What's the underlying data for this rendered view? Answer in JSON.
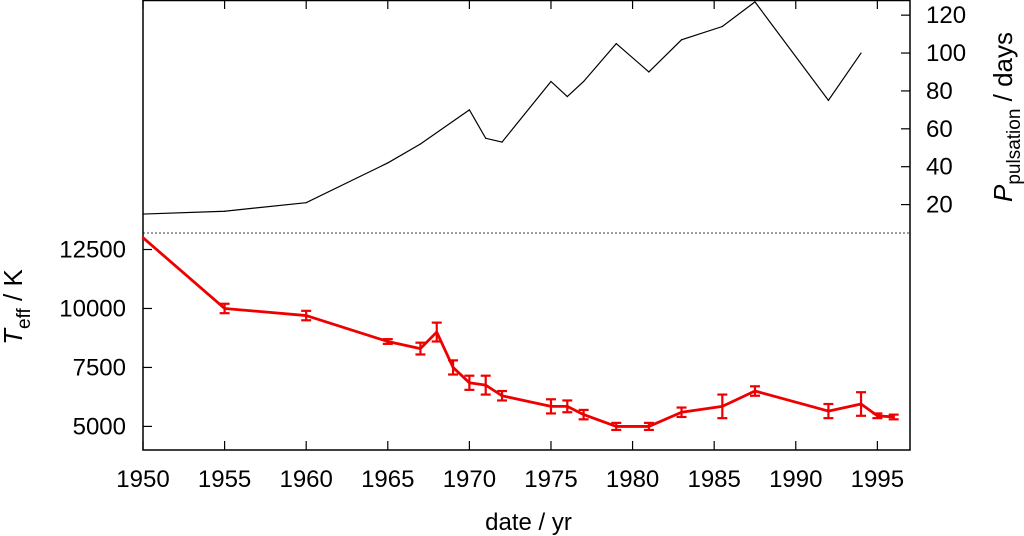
{
  "chart_data": [
    {
      "type": "line",
      "panel": "top",
      "xlabel": "date / yr",
      "ylabel": {
        "base": "P",
        "subscript": "pulsation",
        "suffix": " / days"
      },
      "x_range": [
        1950,
        1997
      ],
      "ylim": [
        5,
        128
      ],
      "y_axis_side": "right",
      "y_ticks": [
        20,
        40,
        60,
        80,
        100,
        120
      ],
      "grid": false,
      "series": [
        {
          "color": "#000000",
          "x": [
            1950,
            1955,
            1960,
            1965,
            1967,
            1970,
            1971,
            1972,
            1975,
            1976,
            1977,
            1979,
            1981,
            1983,
            1985.5,
            1987.5,
            1992,
            1994
          ],
          "values": [
            15,
            16.5,
            21,
            42,
            52,
            70,
            55,
            53,
            85,
            77,
            85,
            105,
            90,
            107,
            114,
            127,
            75,
            100
          ]
        }
      ]
    },
    {
      "type": "line",
      "panel": "bottom",
      "xlabel": "date / yr",
      "ylabel": {
        "base": "T",
        "subscript": "eff",
        "suffix": " / K"
      },
      "x_range": [
        1950,
        1997
      ],
      "ylim": [
        4000,
        13200
      ],
      "y_axis_side": "left",
      "y_ticks": [
        5000,
        7500,
        10000,
        12500
      ],
      "x_ticks": [
        1950,
        1955,
        1960,
        1965,
        1970,
        1975,
        1980,
        1985,
        1990,
        1995
      ],
      "error_bars": true,
      "grid": false,
      "series": [
        {
          "color": "#ee0000",
          "x": [
            1950,
            1955,
            1960,
            1965,
            1967,
            1968,
            1969,
            1970,
            1971,
            1972,
            1975,
            1976,
            1977,
            1979,
            1981,
            1983,
            1985.5,
            1987.5,
            1992,
            1994,
            1995,
            1996
          ],
          "values": [
            13000,
            10000,
            9700,
            8600,
            8300,
            9000,
            7500,
            6850,
            6750,
            6300,
            5850,
            5850,
            5500,
            5000,
            5000,
            5600,
            5850,
            6500,
            5650,
            5950,
            5450,
            5400
          ],
          "errors": [
            0,
            200,
            200,
            100,
            250,
            400,
            300,
            300,
            400,
            200,
            300,
            250,
            200,
            150,
            150,
            200,
            500,
            200,
            300,
            500,
            100,
            100
          ]
        }
      ]
    }
  ],
  "separator": {
    "style": "dotted"
  }
}
